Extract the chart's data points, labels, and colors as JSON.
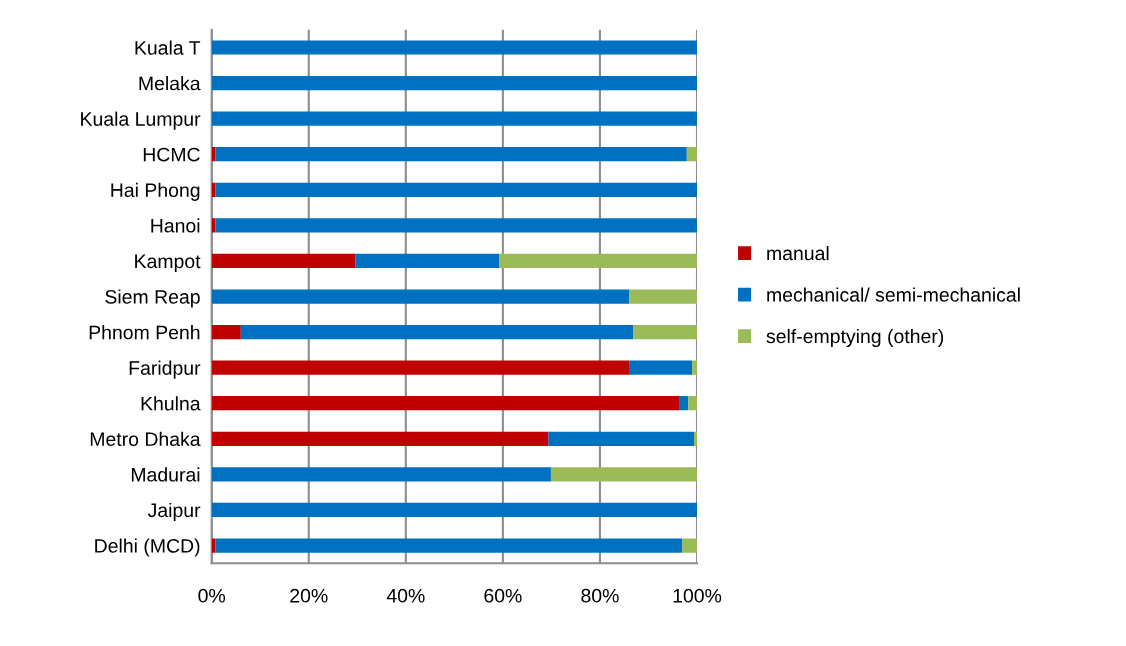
{
  "chart_data": {
    "type": "bar",
    "orientation": "horizontal",
    "stacked": true,
    "categories": [
      "Kuala T",
      "Melaka",
      "Kuala Lumpur",
      "HCMC",
      "Hai Phong",
      "Hanoi",
      "Kampot",
      "Siem Reap",
      "Phnom Penh",
      "Faridpur",
      "Khulna",
      "Metro Dhaka",
      "Madurai",
      "Jaipur",
      "Delhi (MCD)"
    ],
    "series": [
      {
        "name": "manual",
        "color": "#c00000",
        "values": [
          0,
          0,
          0,
          0.8,
          0.8,
          0.8,
          29.6,
          0,
          6.0,
          86.0,
          96.3,
          69.4,
          0,
          0,
          0.8
        ]
      },
      {
        "name": "mechanical/ semi-mechanical",
        "color": "#0070c0",
        "values": [
          100,
          100,
          100,
          97.1,
          99.2,
          99.2,
          29.7,
          86.0,
          80.9,
          13.0,
          1.9,
          30.0,
          69.9,
          100,
          96.2
        ]
      },
      {
        "name": "self-emptying (other)",
        "color": "#9bbb59",
        "values": [
          0,
          0,
          0,
          2.1,
          0,
          0,
          40.7,
          14.0,
          13.1,
          1.0,
          1.8,
          0.6,
          30.1,
          0,
          3.0
        ]
      }
    ],
    "xlim": [
      0,
      100
    ],
    "xticks": [
      {
        "value": 0,
        "label": "0%"
      },
      {
        "value": 20,
        "label": "20%"
      },
      {
        "value": 40,
        "label": "40%"
      },
      {
        "value": 60,
        "label": "60%"
      },
      {
        "value": 80,
        "label": "80%"
      },
      {
        "value": 100,
        "label": "100%"
      }
    ],
    "grid": "x",
    "legend": "right"
  }
}
